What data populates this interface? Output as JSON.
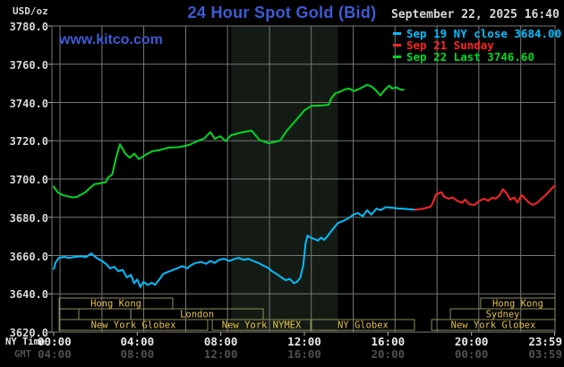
{
  "header": {
    "unit_label": "USD/oz",
    "title": "24 Hour Spot Gold (Bid)",
    "watermark": "www.kitco.com",
    "datetime": "September 22, 2025 16:40"
  },
  "legend": {
    "items": [
      {
        "label": "Sep 19 NY close 3684.00",
        "color": "#00bfff"
      },
      {
        "label": "Sep 21 Sunday",
        "color": "#ff2424"
      },
      {
        "label": "Sep 22 Last 3746.60",
        "color": "#00d822"
      }
    ]
  },
  "axes": {
    "y_tick_labels": [
      "3780.0",
      "3760.0",
      "3740.0",
      "3720.0",
      "3700.0",
      "3680.0",
      "3660.0",
      "3640.0",
      "3620.0"
    ],
    "x_row_ny": {
      "label": "NY Time",
      "ticks": [
        "00:00",
        "04:00",
        "08:00",
        "12:00",
        "16:00",
        "20:00",
        "23:59"
      ]
    },
    "x_row_gmt": {
      "label": "GMT",
      "ticks": [
        "04:00",
        "08:00",
        "12:00",
        "16:00",
        "20:00",
        "00:00",
        "03:59"
      ]
    }
  },
  "sessions": {
    "rows": [
      {
        "boxes": [
          {
            "label": "Hong Kong",
            "start_hour": 0.26,
            "end_hour": 5.7
          },
          {
            "label": "Hong Kong",
            "start_hour": 20.44,
            "end_hour": 24
          }
        ]
      },
      {
        "boxes": [
          {
            "label": "",
            "start_hour": 0.26,
            "end_hour": 1.2
          },
          {
            "label": "",
            "start_hour": 1.2,
            "end_hour": 3.69
          },
          {
            "label": "London",
            "start_hour": 3.69,
            "end_hour": 10.03
          },
          {
            "label": "Sydney",
            "start_hour": 18.99,
            "end_hour": 24
          }
        ]
      },
      {
        "boxes": [
          {
            "label": "New York Globex",
            "start_hour": 0.26,
            "end_hour": 7.37
          },
          {
            "label": "New York NYMEX",
            "start_hour": 7.59,
            "end_hour": 12.3
          },
          {
            "label": "NY Globex",
            "start_hour": 12.34,
            "end_hour": 17.27
          },
          {
            "label": "New York Globex",
            "start_hour": 18.09,
            "end_hour": 24
          }
        ]
      }
    ]
  },
  "chart_data": {
    "type": "line",
    "title": "24 Hour Spot Gold (Bid)",
    "ylabel": "USD/oz",
    "xlabel": "NY time (hours)",
    "xlim": [
      0,
      24
    ],
    "ylim": [
      3620,
      3780
    ],
    "y_gridline_step": 20,
    "grid": true,
    "x_tick_hours": [
      0,
      4,
      8,
      12,
      16,
      20,
      23.98
    ],
    "x_gridlines_hours": [
      0.3,
      2.31,
      4.31,
      6.32,
      8.32,
      10.33,
      12.33,
      14.34,
      16.34,
      18.35,
      20.35,
      22.36
    ],
    "nymex_session_band_hours": [
      8.5,
      13.6
    ],
    "series": [
      {
        "id": "sep19",
        "name": "Sep 19 NY close 3684.00",
        "color": "#00bfff",
        "points": [
          [
            0,
            3653
          ],
          [
            0.1,
            3656.5
          ],
          [
            0.25,
            3658.8
          ],
          [
            0.5,
            3659.3
          ],
          [
            0.75,
            3658.8
          ],
          [
            1,
            3659.3
          ],
          [
            1.3,
            3659.6
          ],
          [
            1.55,
            3659.2
          ],
          [
            1.8,
            3661.1
          ],
          [
            2.05,
            3658.8
          ],
          [
            2.3,
            3657.2
          ],
          [
            2.5,
            3655.7
          ],
          [
            2.7,
            3653.3
          ],
          [
            2.9,
            3654.1
          ],
          [
            3.1,
            3651.8
          ],
          [
            3.3,
            3652.5
          ],
          [
            3.5,
            3648.6
          ],
          [
            3.7,
            3649.9
          ],
          [
            3.85,
            3645.5
          ],
          [
            4,
            3647.5
          ],
          [
            4.15,
            3643.6
          ],
          [
            4.3,
            3646.3
          ],
          [
            4.5,
            3644.7
          ],
          [
            4.7,
            3645.8
          ],
          [
            4.85,
            3644.7
          ],
          [
            5.05,
            3647.4
          ],
          [
            5.25,
            3650.5
          ],
          [
            5.45,
            3651.4
          ],
          [
            5.65,
            3652.2
          ],
          [
            5.9,
            3653.3
          ],
          [
            6.15,
            3654.5
          ],
          [
            6.4,
            3653.3
          ],
          [
            6.6,
            3655.2
          ],
          [
            6.8,
            3656.1
          ],
          [
            7.05,
            3656.7
          ],
          [
            7.3,
            3655.7
          ],
          [
            7.5,
            3657.2
          ],
          [
            7.7,
            3656.1
          ],
          [
            7.9,
            3657.7
          ],
          [
            8.15,
            3658.3
          ],
          [
            8.4,
            3657.2
          ],
          [
            8.6,
            3658
          ],
          [
            8.85,
            3658.8
          ],
          [
            9.1,
            3657.7
          ],
          [
            9.3,
            3658.3
          ],
          [
            9.55,
            3657.2
          ],
          [
            9.8,
            3656.1
          ],
          [
            10,
            3654.9
          ],
          [
            10.25,
            3653.7
          ],
          [
            10.45,
            3651.8
          ],
          [
            10.65,
            3650.5
          ],
          [
            10.85,
            3648.9
          ],
          [
            11.1,
            3647.1
          ],
          [
            11.3,
            3647.8
          ],
          [
            11.5,
            3645.5
          ],
          [
            11.65,
            3646.3
          ],
          [
            11.8,
            3648.3
          ],
          [
            11.95,
            3655
          ],
          [
            12.05,
            3666
          ],
          [
            12.15,
            3670.5
          ],
          [
            12.3,
            3669.3
          ],
          [
            12.5,
            3668.5
          ],
          [
            12.65,
            3667.8
          ],
          [
            12.8,
            3669.4
          ],
          [
            12.95,
            3668.2
          ],
          [
            13.1,
            3670.1
          ],
          [
            13.3,
            3672.9
          ],
          [
            13.6,
            3677
          ],
          [
            13.9,
            3678.3
          ],
          [
            14.1,
            3679.4
          ],
          [
            14.35,
            3681.4
          ],
          [
            14.55,
            3682.2
          ],
          [
            14.8,
            3680.6
          ],
          [
            15,
            3683.7
          ],
          [
            15.2,
            3681.4
          ],
          [
            15.45,
            3684.5
          ],
          [
            15.65,
            3683.7
          ],
          [
            15.9,
            3685.3
          ],
          [
            16.2,
            3685
          ],
          [
            16.5,
            3684.6
          ],
          [
            16.8,
            3684.4
          ],
          [
            17.1,
            3684.1
          ],
          [
            17.3,
            3684
          ]
        ]
      },
      {
        "id": "sep21",
        "name": "Sep 21 Sunday",
        "color": "#ff2424",
        "points": [
          [
            17.3,
            3684
          ],
          [
            17.55,
            3684.3
          ],
          [
            17.8,
            3684.8
          ],
          [
            18.05,
            3685.6
          ],
          [
            18.15,
            3687.6
          ],
          [
            18.3,
            3691.9
          ],
          [
            18.55,
            3693.1
          ],
          [
            18.7,
            3690.7
          ],
          [
            18.9,
            3689.7
          ],
          [
            19.1,
            3690.3
          ],
          [
            19.35,
            3688.4
          ],
          [
            19.55,
            3687.6
          ],
          [
            19.7,
            3689.2
          ],
          [
            19.9,
            3686.8
          ],
          [
            20.15,
            3686.5
          ],
          [
            20.35,
            3688.4
          ],
          [
            20.6,
            3689.7
          ],
          [
            20.8,
            3688.7
          ],
          [
            21,
            3690.3
          ],
          [
            21.15,
            3689.7
          ],
          [
            21.35,
            3691.6
          ],
          [
            21.5,
            3694.7
          ],
          [
            21.7,
            3692.3
          ],
          [
            21.85,
            3689.2
          ],
          [
            22.05,
            3690.3
          ],
          [
            22.2,
            3687.6
          ],
          [
            22.4,
            3691.6
          ],
          [
            22.55,
            3690
          ],
          [
            22.75,
            3687.6
          ],
          [
            22.95,
            3686.5
          ],
          [
            23.15,
            3687.6
          ],
          [
            23.35,
            3689.7
          ],
          [
            23.55,
            3691.6
          ],
          [
            23.75,
            3694
          ],
          [
            23.98,
            3696.5
          ]
        ]
      },
      {
        "id": "sep22",
        "name": "Sep 22 Last 3746.60",
        "color": "#00d822",
        "points": [
          [
            0,
            3696
          ],
          [
            0.2,
            3693
          ],
          [
            0.45,
            3691.5
          ],
          [
            0.65,
            3691
          ],
          [
            0.9,
            3690.4
          ],
          [
            1.1,
            3690.6
          ],
          [
            1.3,
            3691.8
          ],
          [
            1.5,
            3693
          ],
          [
            1.75,
            3695.4
          ],
          [
            1.95,
            3697.3
          ],
          [
            2.2,
            3697.7
          ],
          [
            2.5,
            3698.4
          ],
          [
            2.6,
            3700.8
          ],
          [
            2.8,
            3702.3
          ],
          [
            3,
            3711.7
          ],
          [
            3.17,
            3718.2
          ],
          [
            3.43,
            3713.3
          ],
          [
            3.64,
            3711.2
          ],
          [
            3.86,
            3713.3
          ],
          [
            4.07,
            3710.4
          ],
          [
            4.37,
            3712.5
          ],
          [
            4.71,
            3714.5
          ],
          [
            5.06,
            3715.1
          ],
          [
            5.49,
            3716.4
          ],
          [
            5.96,
            3716.6
          ],
          [
            6.47,
            3717.8
          ],
          [
            6.94,
            3720.1
          ],
          [
            7.2,
            3721.1
          ],
          [
            7.5,
            3724.5
          ],
          [
            7.71,
            3721
          ],
          [
            7.97,
            3722.4
          ],
          [
            8.23,
            3719.8
          ],
          [
            8.49,
            3722.9
          ],
          [
            8.96,
            3724.3
          ],
          [
            9.47,
            3725.3
          ],
          [
            9.86,
            3720.3
          ],
          [
            10.3,
            3718.7
          ],
          [
            10.55,
            3719.3
          ],
          [
            10.84,
            3720.1
          ],
          [
            11.14,
            3725
          ],
          [
            11.57,
            3730.4
          ],
          [
            12,
            3735.9
          ],
          [
            12.34,
            3738.2
          ],
          [
            12.8,
            3738.4
          ],
          [
            13.16,
            3738.8
          ],
          [
            13.29,
            3742.2
          ],
          [
            13.5,
            3745
          ],
          [
            13.63,
            3745.3
          ],
          [
            13.93,
            3746.8
          ],
          [
            14.14,
            3747.3
          ],
          [
            14.36,
            3746
          ],
          [
            14.57,
            3746.8
          ],
          [
            15,
            3749.2
          ],
          [
            15.21,
            3748.4
          ],
          [
            15.43,
            3746.3
          ],
          [
            15.64,
            3743.7
          ],
          [
            15.86,
            3746.8
          ],
          [
            16.07,
            3748.8
          ],
          [
            16.2,
            3747.3
          ],
          [
            16.41,
            3747.9
          ],
          [
            16.58,
            3746.8
          ],
          [
            16.75,
            3746.6
          ]
        ]
      }
    ]
  },
  "colors": {
    "background": "#000000",
    "grid": "#787878",
    "band": "#141b14",
    "session_border": "#8e8e5a",
    "session_text": "#e3c24a",
    "axis_text": "#d8d8d8",
    "gmt_text": "#4f4f4f",
    "title": "#3d5bd5",
    "tick_mark": "#b5b5b5"
  }
}
